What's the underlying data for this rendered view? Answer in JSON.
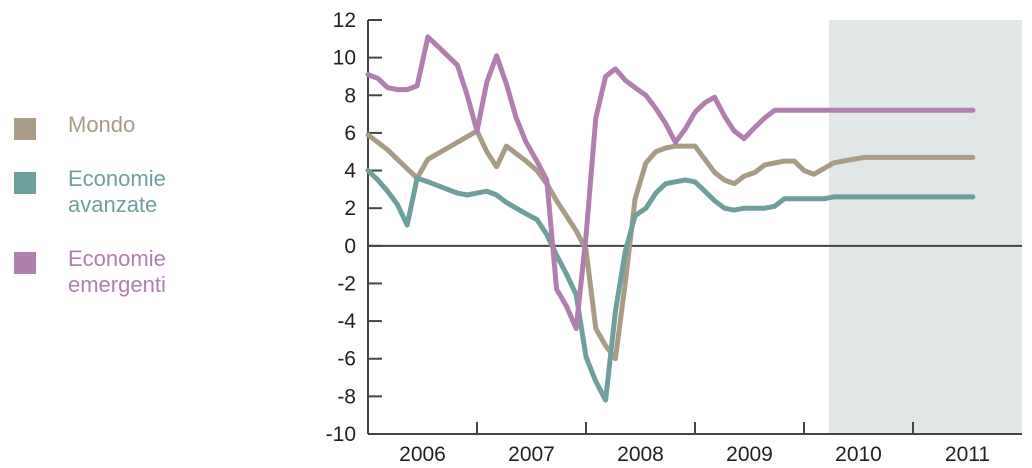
{
  "legend": {
    "items": [
      {
        "label": "Mondo",
        "color": "#a89c86"
      },
      {
        "label": "Economie avanzate",
        "color": "#6f9f9d"
      },
      {
        "label": "Economie emergenti",
        "color": "#b07fae"
      }
    ]
  },
  "chart_data": {
    "type": "line",
    "title": "",
    "xlabel": "",
    "ylabel": "",
    "ylim": [
      -10,
      12
    ],
    "yticks": [
      12,
      10,
      8,
      6,
      4,
      2,
      0,
      -2,
      -4,
      -6,
      -8,
      -10
    ],
    "xlim": [
      2006,
      2012
    ],
    "year_labels": [
      "2006",
      "2007",
      "2008",
      "2009",
      "2010",
      "2011"
    ],
    "shaded_region": {
      "from": 2010.23,
      "to": 2012,
      "color": "#e1e6e6"
    },
    "zero_line": true,
    "legend_position": "left",
    "x": [
      2006.0,
      2006.09,
      2006.18,
      2006.27,
      2006.36,
      2006.45,
      2006.55,
      2006.64,
      2006.73,
      2006.82,
      2006.91,
      2007.0,
      2007.09,
      2007.18,
      2007.27,
      2007.36,
      2007.45,
      2007.55,
      2007.64,
      2007.73,
      2007.82,
      2007.91,
      2008.0,
      2008.09,
      2008.18,
      2008.27,
      2008.36,
      2008.45,
      2008.55,
      2008.64,
      2008.73,
      2008.82,
      2008.91,
      2009.0,
      2009.09,
      2009.18,
      2009.27,
      2009.36,
      2009.45,
      2009.55,
      2009.64,
      2009.73,
      2009.82,
      2009.91,
      2010.0,
      2010.09,
      2010.18,
      2010.27,
      2010.36,
      2010.45,
      2010.55,
      2010.64,
      2010.73,
      2010.82,
      2010.91,
      2011.0,
      2011.09,
      2011.18,
      2011.27,
      2011.36,
      2011.45,
      2011.55
    ],
    "series": [
      {
        "name": "Mondo",
        "color": "#a89c86",
        "values": [
          5.9,
          5.5,
          5.1,
          4.6,
          4.1,
          3.6,
          4.6,
          4.9,
          5.2,
          5.5,
          5.8,
          6.1,
          5.0,
          4.2,
          5.3,
          4.9,
          4.5,
          4.0,
          3.3,
          2.4,
          1.6,
          0.8,
          -0.2,
          -4.4,
          -5.3,
          -6.0,
          -2.0,
          2.5,
          4.4,
          5.0,
          5.2,
          5.3,
          5.3,
          5.3,
          4.6,
          3.9,
          3.5,
          3.3,
          3.7,
          3.9,
          4.3,
          4.4,
          4.5,
          4.5,
          4.0,
          3.8,
          4.1,
          4.4,
          4.5,
          4.6,
          4.7,
          4.7,
          4.7,
          4.7,
          4.7,
          4.7,
          4.7,
          4.7,
          4.7,
          4.7,
          4.7,
          4.7
        ]
      },
      {
        "name": "Economie avanzate",
        "color": "#6f9f9d",
        "values": [
          4.0,
          3.5,
          2.9,
          2.2,
          1.1,
          3.6,
          3.4,
          3.2,
          3.0,
          2.8,
          2.7,
          2.8,
          2.9,
          2.7,
          2.3,
          2.0,
          1.7,
          1.4,
          0.6,
          -0.5,
          -1.5,
          -2.6,
          -5.9,
          -7.2,
          -8.2,
          -3.5,
          -0.3,
          1.6,
          2.0,
          2.8,
          3.3,
          3.4,
          3.5,
          3.4,
          2.9,
          2.4,
          2.0,
          1.9,
          2.0,
          2.0,
          2.0,
          2.1,
          2.5,
          2.5,
          2.5,
          2.5,
          2.5,
          2.6,
          2.6,
          2.6,
          2.6,
          2.6,
          2.6,
          2.6,
          2.6,
          2.6,
          2.6,
          2.6,
          2.6,
          2.6,
          2.6,
          2.6
        ]
      },
      {
        "name": "Economie emergenti",
        "color": "#b07fae",
        "values": [
          9.1,
          8.9,
          8.4,
          8.3,
          8.3,
          8.5,
          11.1,
          10.6,
          10.1,
          9.6,
          8.0,
          6.1,
          8.7,
          10.1,
          8.6,
          6.8,
          5.5,
          4.5,
          3.5,
          -2.3,
          -3.2,
          -4.4,
          0.5,
          6.8,
          9.0,
          9.4,
          8.8,
          8.4,
          8.0,
          7.3,
          6.5,
          5.5,
          6.2,
          7.1,
          7.6,
          7.9,
          6.9,
          6.1,
          5.7,
          6.3,
          6.8,
          7.2,
          7.2,
          7.2,
          7.2,
          7.2,
          7.2,
          7.2,
          7.2,
          7.2,
          7.2,
          7.2,
          7.2,
          7.2,
          7.2,
          7.2,
          7.2,
          7.2,
          7.2,
          7.2,
          7.2,
          7.2
        ]
      }
    ]
  }
}
